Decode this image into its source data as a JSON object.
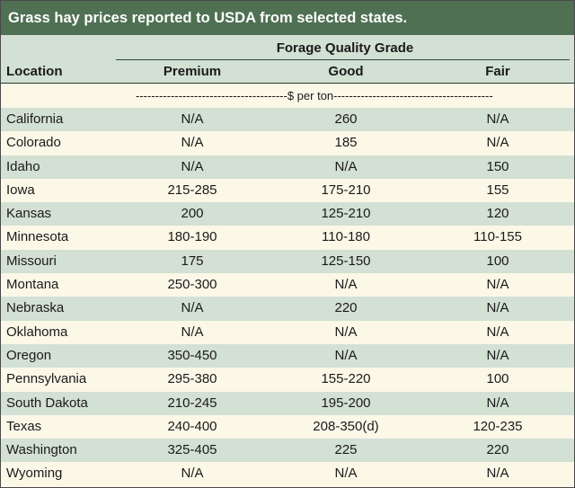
{
  "title": "Grass hay prices reported to USDA from selected states.",
  "header": {
    "group_label": "Forage Quality Grade",
    "location": "Location",
    "premium": "Premium",
    "good": "Good",
    "fair": "Fair"
  },
  "units": "---------------------------------------$ per ton-----------------------------------------",
  "rows": [
    {
      "location": "California",
      "premium": "N/A",
      "good": "260",
      "fair": "N/A"
    },
    {
      "location": "Colorado",
      "premium": "N/A",
      "good": "185",
      "fair": "N/A"
    },
    {
      "location": "Idaho",
      "premium": "N/A",
      "good": "N/A",
      "fair": "150"
    },
    {
      "location": "Iowa",
      "premium": "215-285",
      "good": "175-210",
      "fair": "155"
    },
    {
      "location": "Kansas",
      "premium": "200",
      "good": "125-210",
      "fair": "120"
    },
    {
      "location": "Minnesota",
      "premium": "180-190",
      "good": "110-180",
      "fair": "110-155"
    },
    {
      "location": "Missouri",
      "premium": "175",
      "good": "125-150",
      "fair": "100"
    },
    {
      "location": "Montana",
      "premium": "250-300",
      "good": "N/A",
      "fair": "N/A"
    },
    {
      "location": "Nebraska",
      "premium": "N/A",
      "good": "220",
      "fair": "N/A"
    },
    {
      "location": "Oklahoma",
      "premium": "N/A",
      "good": "N/A",
      "fair": "N/A"
    },
    {
      "location": "Oregon",
      "premium": "350-450",
      "good": "N/A",
      "fair": "N/A"
    },
    {
      "location": "Pennsylvania",
      "premium": "295-380",
      "good": "155-220",
      "fair": "100"
    },
    {
      "location": "South Dakota",
      "premium": "210-245",
      "good": "195-200",
      "fair": "N/A"
    },
    {
      "location": "Texas",
      "premium": "240-400",
      "good": "208-350(d)",
      "fair": "120-235"
    },
    {
      "location": "Washington",
      "premium": "325-405",
      "good": "225",
      "fair": "220"
    },
    {
      "location": "Wyoming",
      "premium": "N/A",
      "good": "N/A",
      "fair": "N/A"
    }
  ]
}
